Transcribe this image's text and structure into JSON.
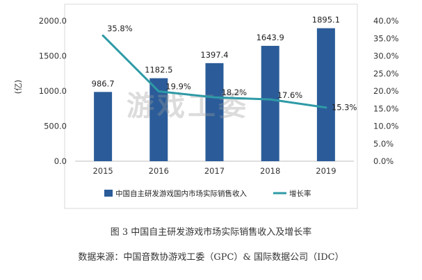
{
  "chart_data": {
    "type": "bar",
    "categories": [
      "2015",
      "2016",
      "2017",
      "2018",
      "2019"
    ],
    "series": [
      {
        "name": "中国自主研发游戏国内市场实际销售收入",
        "type": "bar",
        "axis": "left",
        "values": [
          986.7,
          1182.5,
          1397.4,
          1643.9,
          1895.1
        ],
        "labels": [
          "986.7",
          "1182.5",
          "1397.4",
          "1643.9",
          "1895.1"
        ]
      },
      {
        "name": "增长率",
        "type": "line",
        "axis": "right",
        "values": [
          35.8,
          19.9,
          18.2,
          17.6,
          15.3
        ],
        "labels": [
          "35.8%",
          "19.9%",
          "18.2%",
          "17.6%",
          "15.3%"
        ]
      }
    ],
    "ylabel": "(亿)",
    "ylim": [
      0,
      2000
    ],
    "y_ticks": [
      "0.0",
      "500.0",
      "1000.0",
      "1500.0",
      "2000.0"
    ],
    "y2lim": [
      0,
      40
    ],
    "y2_ticks": [
      "0.0%",
      "5.0%",
      "10.0%",
      "15.0%",
      "20.0%",
      "25.0%",
      "30.0%",
      "35.0%",
      "40.0%"
    ],
    "grid": false,
    "legend_position": "bottom",
    "colors": {
      "bar": "#2b5c99",
      "line": "#2e9aa6"
    },
    "watermark": "游戏工委"
  },
  "caption": "图 3  中国自主研发游戏市场实际销售收入及增长率",
  "source": "数据来源：中国音数协游戏工委（GPC）& 国际数据公司（IDC）"
}
